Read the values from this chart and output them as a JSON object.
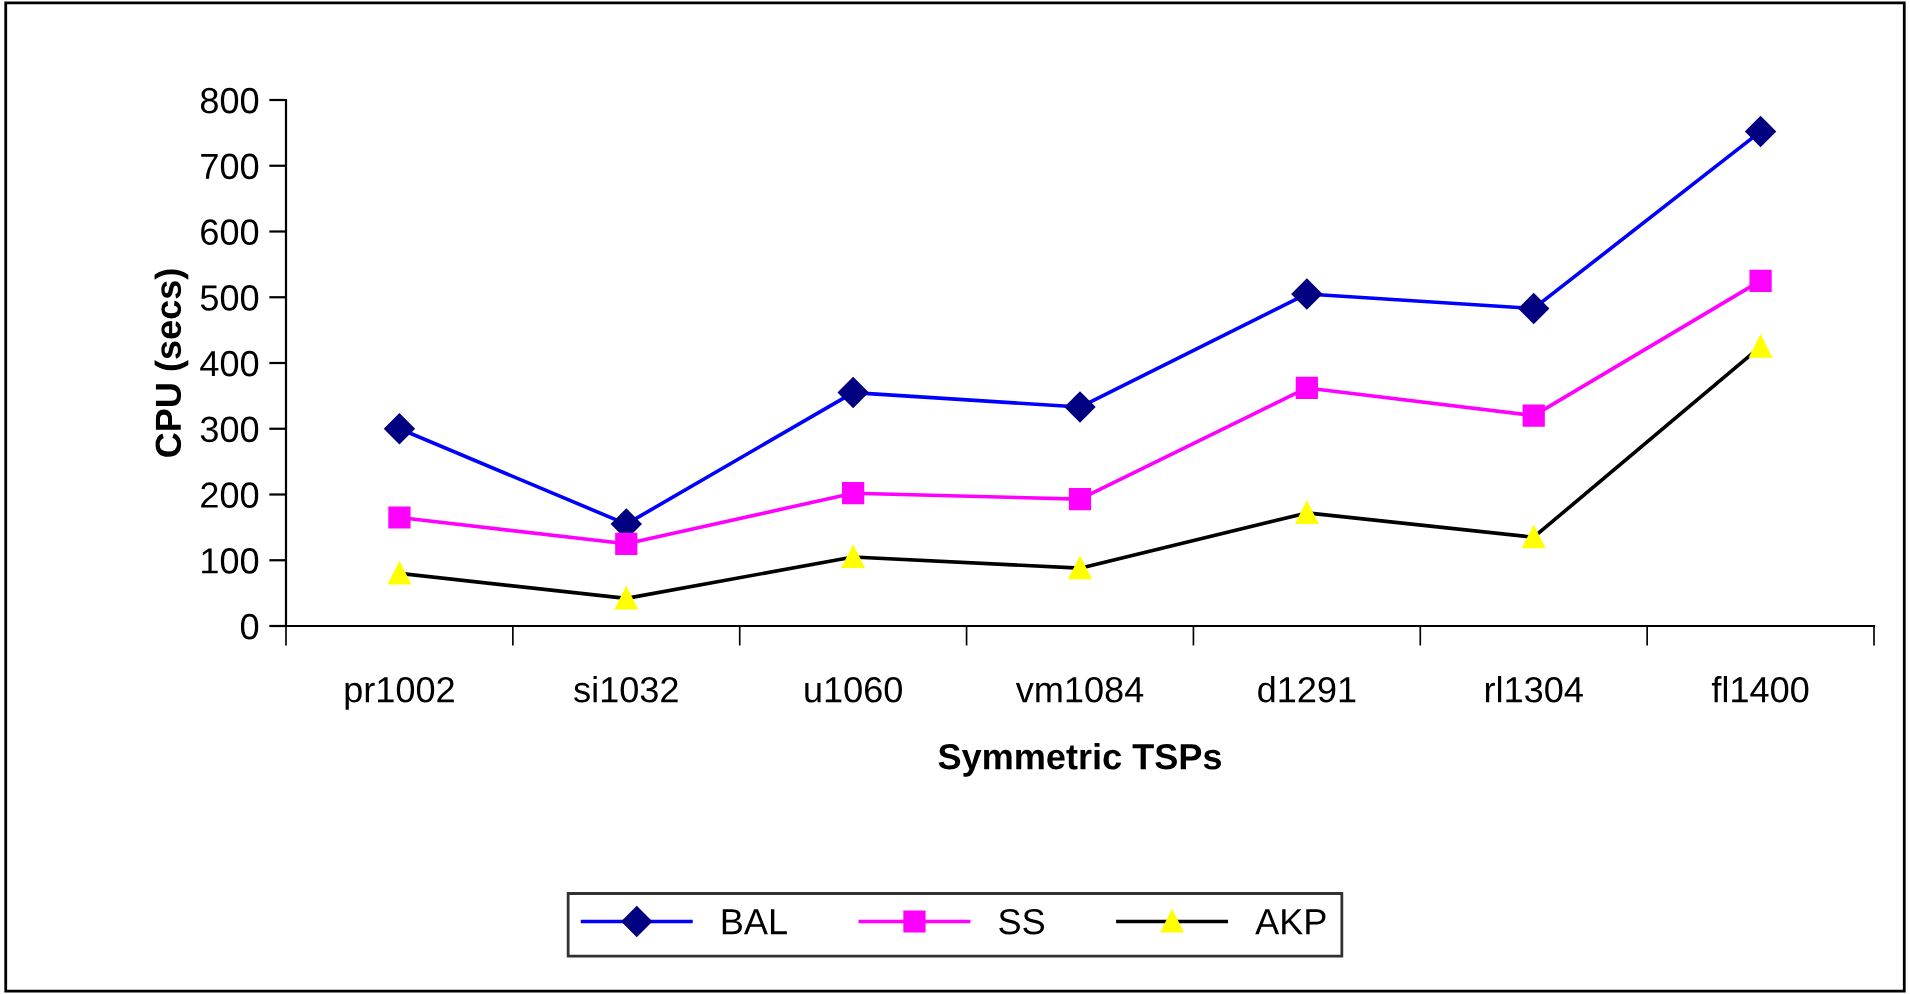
{
  "chart_data": {
    "type": "line",
    "xlabel": "Symmetric TSPs",
    "ylabel": "CPU (secs)",
    "categories": [
      "pr1002",
      "si1032",
      "u1060",
      "vm1084",
      "d1291",
      "rl1304",
      "fl1400"
    ],
    "series": [
      {
        "name": "BAL",
        "color": "#0000ff",
        "colors": [
          "#000080",
          "#000080",
          "#000080",
          "#000080",
          "#000080",
          "#000080",
          "#000080"
        ],
        "marker": "diamond",
        "values": [
          300,
          155,
          355,
          333,
          505,
          483,
          752
        ]
      },
      {
        "name": "SS",
        "color": "#ff00ff",
        "colors": [
          "#ff00ff",
          "#ff00ff",
          "#ff00ff",
          "#ff00ff",
          "#ff00ff",
          "#ff00ff",
          "#ff00ff"
        ],
        "marker": "square",
        "values": [
          165,
          125,
          202,
          193,
          362,
          320,
          525
        ]
      },
      {
        "name": "AKP",
        "color": "#000000",
        "colors": [
          "#ffff00",
          "#ffff00",
          "#ffff00",
          "#ffff00",
          "#ffff00",
          "#ffff00",
          "#ffff00"
        ],
        "marker": "triangle",
        "values": [
          80,
          42,
          105,
          88,
          172,
          135,
          425
        ]
      }
    ],
    "ylim": [
      0,
      800
    ],
    "yticks": [
      0,
      100,
      200,
      300,
      400,
      500,
      600,
      700,
      800
    ],
    "grid": false,
    "legend": "bottom",
    "line_style": "solid"
  }
}
